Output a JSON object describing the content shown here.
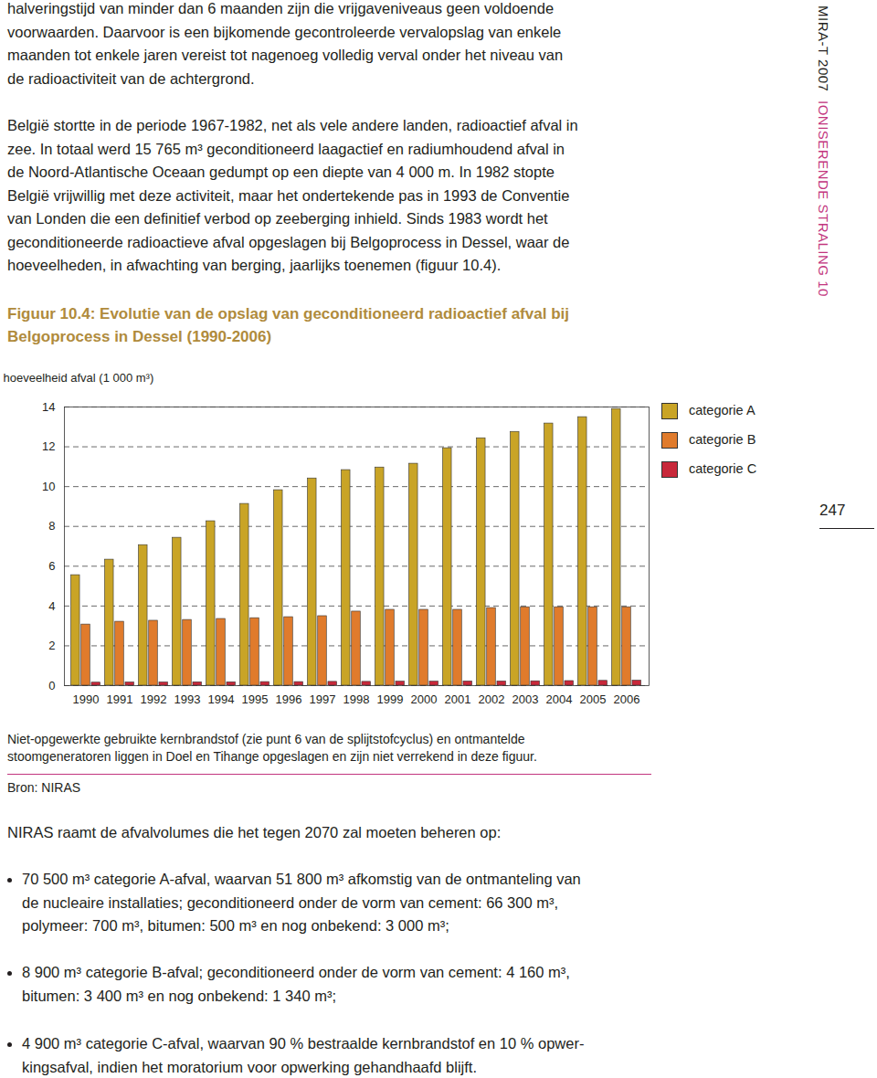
{
  "page": {
    "paragraph_1": [
      "halveringstijd van minder dan 6 maanden zijn die vrijgaveniveaus geen voldoende",
      "voorwaarden. Daarvoor is een bijkomende gecontroleerde vervalopslag van enkele",
      "maanden tot enkele jaren vereist tot nagenoeg volledig verval onder het niveau van",
      "de radioactiviteit van de achtergrond."
    ],
    "paragraph_2": [
      "België stortte in de periode 1967-1982, net als vele andere landen, radioactief afval in",
      "zee. In totaal werd 15 765 m³ geconditioneerd laagactief en radiumhoudend afval in",
      "de Noord-Atlantische Oceaan gedumpt op een diepte van 4 000 m. In 1982 stopte",
      "België vrijwillig met deze activiteit, maar het ondertekende pas in 1993 de Conventie",
      "van Londen die een definitief verbod op zeeberging inhield. Sinds 1983 wordt het",
      "geconditioneerde radioactieve afval opgeslagen bij Belgoprocess in Dessel, waar de",
      "hoeveelheden, in afwachting van berging, jaarlijks toenemen (figuur 10.4)."
    ],
    "figure_note": [
      "Niet-opgewerkte gebruikte kernbrandstof (zie punt 6 van de splijtstofcyclus) en ontmantelde",
      "stoomgeneratoren liggen in Doel en Tihange opgeslagen en zijn niet verrekend in deze figuur."
    ],
    "source": "Bron: NIRAS",
    "list_intro": "NIRAS raamt de afvalvolumes die het tegen 2070 zal moeten beheren op:",
    "bullets": [
      [
        "70 500 m³ categorie A-afval, waarvan 51 800 m³ afkomstig van de ontmanteling van",
        "de nucleaire installaties; geconditioneerd onder de vorm van cement: 66 300 m³,",
        "polymeer: 700 m³, bitumen: 500 m³ en nog onbekend: 3 000 m³;"
      ],
      [
        "8 900 m³ categorie B-afval; geconditioneerd onder de vorm van cement: 4 160 m³,",
        "bitumen: 3 400 m³ en nog onbekend: 1 340 m³;"
      ],
      [
        "4 900 m³ categorie C-afval, waarvan 90 % bestraalde kernbrandstof en 10 % opwer-",
        "kingsafval, indien het moratorium voor opwerking gehandhaafd blijft."
      ]
    ],
    "side_label": "MIRA-T 2007",
    "side_section": "IONISERENDE STRALING 10",
    "page_number": "247"
  },
  "chart_data": {
    "type": "bar",
    "title": "Figuur 10.4: Evolutie van de opslag van geconditioneerd radioactief afval bij\nBelgoprocess in Dessel (1990-2006)",
    "y_label": "hoeveelheid afval (1 000 m³)",
    "categories": [
      "1990",
      "1991",
      "1992",
      "1993",
      "1994",
      "1995",
      "1996",
      "1997",
      "1998",
      "1999",
      "2000",
      "2001",
      "2002",
      "2003",
      "2004",
      "2005",
      "2006"
    ],
    "series": [
      {
        "name": "categorie A",
        "color": "#c9a426",
        "values": [
          5.55,
          6.33,
          7.06,
          7.43,
          8.26,
          9.13,
          9.82,
          10.41,
          10.83,
          10.96,
          11.15,
          11.93,
          12.43,
          12.75,
          13.17,
          13.49,
          13.9
        ]
      },
      {
        "name": "categorie B",
        "color": "#e07b2c",
        "values": [
          3.07,
          3.21,
          3.26,
          3.3,
          3.35,
          3.39,
          3.44,
          3.49,
          3.72,
          3.81,
          3.81,
          3.81,
          3.9,
          3.94,
          3.94,
          3.94,
          3.94
        ]
      },
      {
        "name": "categorie C",
        "color": "#c8283a",
        "values": [
          0.15,
          0.16,
          0.16,
          0.17,
          0.17,
          0.18,
          0.18,
          0.19,
          0.19,
          0.2,
          0.2,
          0.21,
          0.21,
          0.22,
          0.23,
          0.24,
          0.25
        ]
      }
    ],
    "ylim": [
      0,
      14
    ],
    "yticks": [
      0,
      2,
      4,
      6,
      8,
      10,
      12,
      14
    ],
    "grid": true,
    "legend": "right"
  }
}
